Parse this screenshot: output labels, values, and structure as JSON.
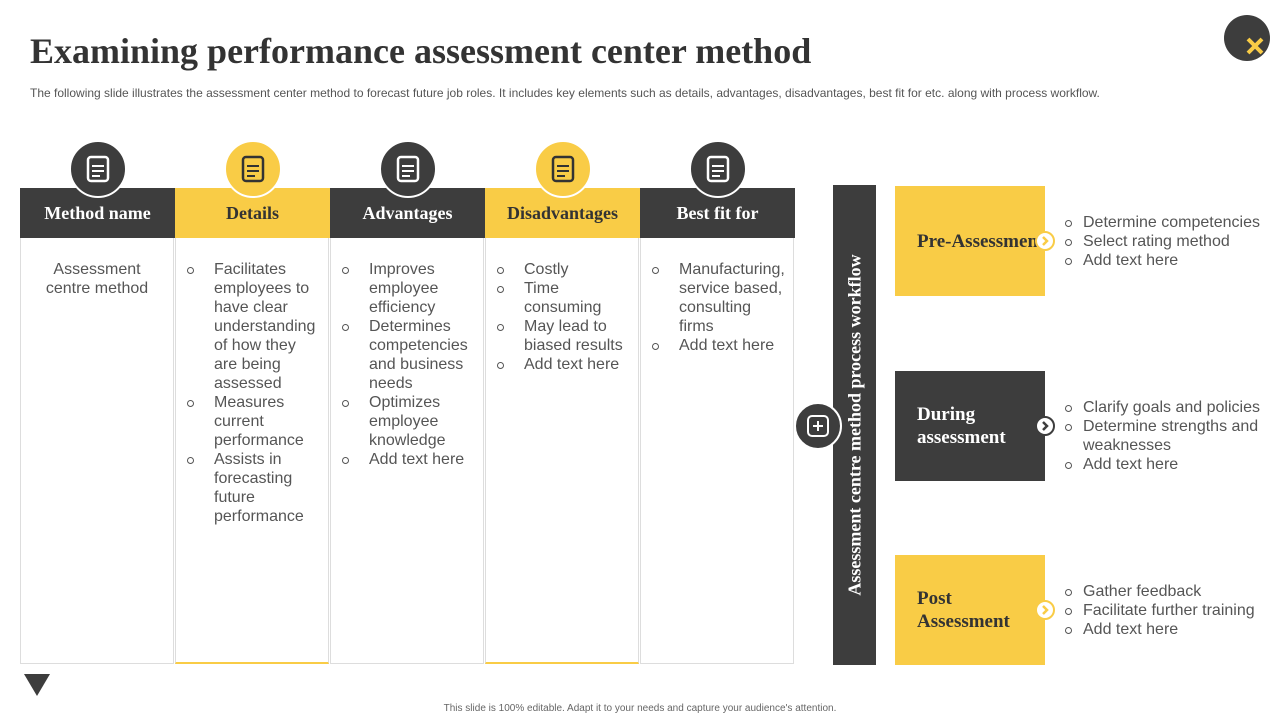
{
  "header": {
    "title": "Examining performance assessment center method",
    "subtitle": "The following slide illustrates the assessment center method to forecast future job roles. It includes key elements such as details, advantages, disadvantages, best fit for etc. along with process workflow."
  },
  "columns": [
    {
      "header": "Method name",
      "text": "Assessment centre method"
    },
    {
      "header": "Details",
      "items": [
        "Facilitates employees to have clear understanding of how they are being assessed",
        "Measures current performance",
        "Assists in forecasting future performance"
      ]
    },
    {
      "header": "Advantages",
      "items": [
        "Improves employee efficiency",
        "Determines competencies and business needs",
        "Optimizes employee knowledge",
        "Add text here"
      ]
    },
    {
      "header": "Disadvantages",
      "items": [
        "Costly",
        "Time consuming",
        "May lead to biased results",
        "Add text here"
      ]
    },
    {
      "header": "Best fit for",
      "items": [
        "Manufacturing, service based, consulting firms",
        "Add text here"
      ]
    }
  ],
  "workflow": {
    "label": "Assessment centre method process workflow",
    "stages": [
      {
        "name": "Pre-Assessment",
        "items": [
          "Determine competencies",
          "Select rating method",
          "Add text here"
        ]
      },
      {
        "name": "During assessment",
        "items": [
          "Clarify goals and policies",
          "Determine strengths and weaknesses",
          "Add text here"
        ]
      },
      {
        "name": "Post Assessment",
        "items": [
          "Gather feedback",
          "Facilitate further training",
          "Add text here"
        ]
      }
    ]
  },
  "footer": "This slide is 100% editable. Adapt it to your needs and capture your audience's attention."
}
